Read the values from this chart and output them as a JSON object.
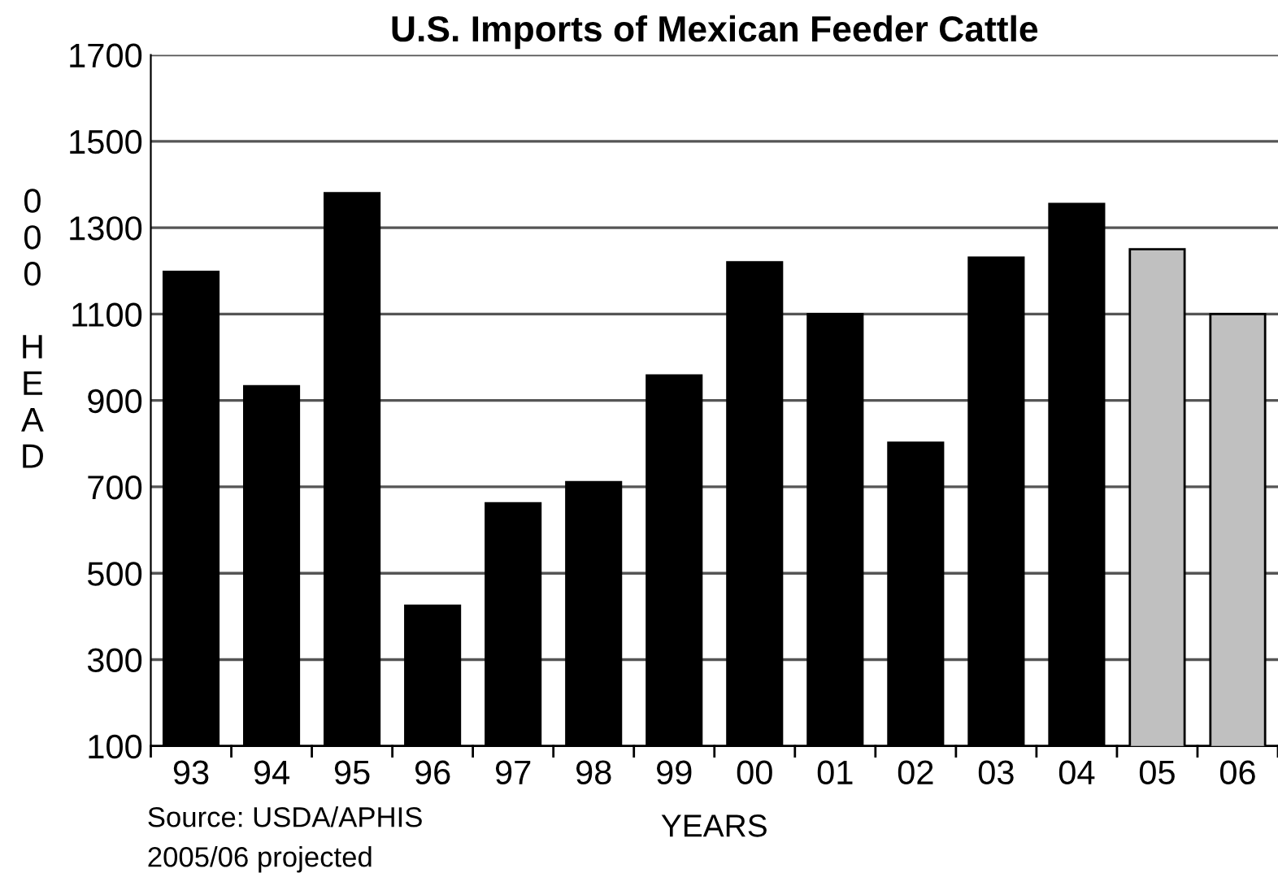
{
  "chart_data": {
    "type": "bar",
    "title": "U.S. Imports of Mexican Feeder Cattle",
    "xlabel": "YEARS",
    "ylabel": "000 HEAD",
    "categories": [
      "93",
      "94",
      "95",
      "96",
      "97",
      "98",
      "99",
      "00",
      "01",
      "02",
      "03",
      "04",
      "05",
      "06"
    ],
    "values": [
      1198,
      933,
      1380,
      425,
      662,
      711,
      958,
      1220,
      1100,
      802,
      1231,
      1355,
      1250,
      1100
    ],
    "colors": [
      "#000000",
      "#000000",
      "#000000",
      "#000000",
      "#000000",
      "#000000",
      "#000000",
      "#000000",
      "#000000",
      "#000000",
      "#000000",
      "#000000",
      "#c0c0c0",
      "#c0c0c0"
    ],
    "ylim": [
      100,
      1700
    ],
    "yticks": [
      100,
      300,
      500,
      700,
      900,
      1100,
      1300,
      1500,
      1700
    ],
    "grid": "y",
    "annotations": [
      "Source: USDA/APHIS",
      "2005/06 projected"
    ]
  }
}
